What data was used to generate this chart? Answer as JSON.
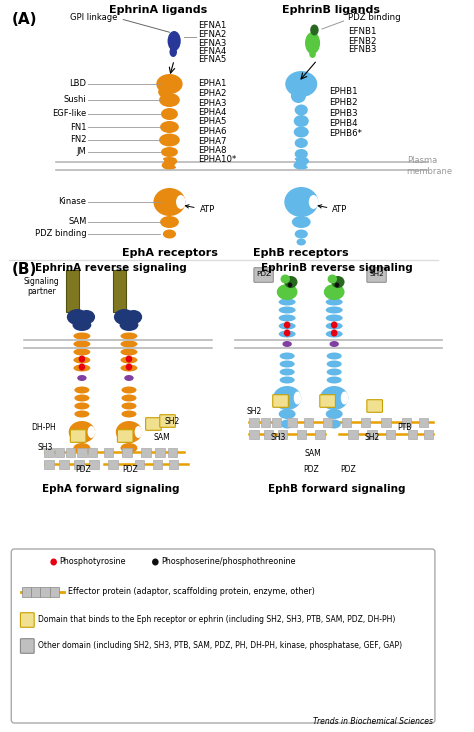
{
  "background_color": "#ffffff",
  "panel_A_label": "(A)",
  "panel_B_label": "(B)",
  "ephrinA_title": "EphrinA ligands",
  "ephrinB_title": "EphrinB ligands",
  "epha_title": "EphA receptors",
  "ephb_title": "EphB receptors",
  "ephrinA_reverse": "EphrinA reverse signaling",
  "ephrinB_reverse": "EphrinB reverse signaling",
  "epha_forward": "EphA forward signaling",
  "ephb_forward": "EphB forward signaling",
  "efna_labels": [
    "EFNA1",
    "EFNA2",
    "EFNA3",
    "EFNA4",
    "EFNA5"
  ],
  "efnb_labels": [
    "EFNB1",
    "EFNB2",
    "EFNB3"
  ],
  "epha_labels": [
    "EPHA1",
    "EPHA2",
    "EPHA3",
    "EPHA4",
    "EPHA5",
    "EPHA6",
    "EPHA7",
    "EPHA8",
    "EPHA10*"
  ],
  "ephb_labels": [
    "EPHB1",
    "EPHB2",
    "EPHB3",
    "EPHB4",
    "EPHB6*"
  ],
  "epha_domain_labels": [
    "LBD",
    "Sushi",
    "EGF-like",
    "FN1",
    "FN2",
    "JM",
    "Kinase",
    "SAM",
    "PDZ binding"
  ],
  "gpi_label": "GPI linkage",
  "pdz_bind_label": "PDZ binding",
  "plasma_membrane_label": "Plasma\nmembrane",
  "atp_label": "ATP",
  "trends_label": "Trends in Biochemical Sciences",
  "orange_color": "#E88A10",
  "blue_color": "#62B8E8",
  "dark_blue_color": "#1E3878",
  "green_color": "#58C840",
  "dark_green_color": "#286820",
  "olive_color": "#807820",
  "red_color": "#E80010",
  "black_color": "#101010",
  "gray_color": "#C0C0C0",
  "purple_color": "#8040A0",
  "yellow_box_color": "#F0E090",
  "membrane_color": "#B8B8B8",
  "ligand_blue": "#283898"
}
